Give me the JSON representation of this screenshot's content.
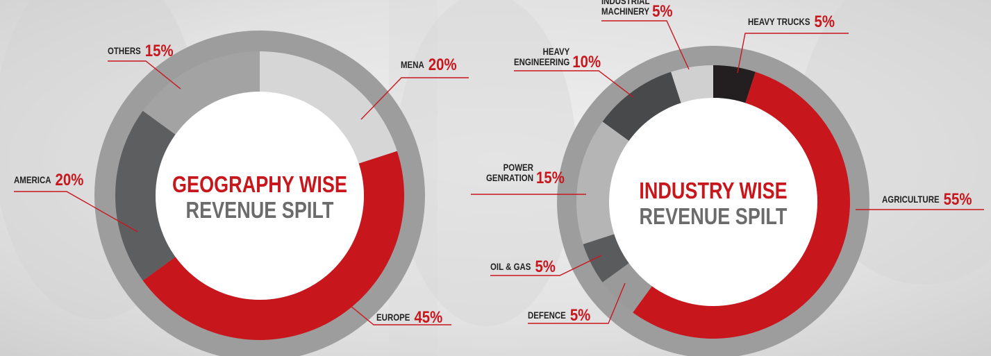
{
  "colors": {
    "accent": "#c8161d",
    "text_dark": "#222222",
    "subtitle": "#6b6b6b",
    "ring_outer": "#9d9d9d",
    "center": "#ffffff"
  },
  "chart_data": [
    {
      "type": "donut",
      "title_line1": "GEOGRAPHY WISE",
      "title_line2": "REVENUE SPILT",
      "segments": [
        {
          "name": "MENA",
          "value": 20,
          "value_label": "20%",
          "color": "#d6d6d6"
        },
        {
          "name": "EUROPE",
          "value": 45,
          "value_label": "45%",
          "color": "#c8161d"
        },
        {
          "name": "AMERICA",
          "value": 20,
          "value_label": "20%",
          "color": "#5d5e60"
        },
        {
          "name": "OTHERS",
          "value": 15,
          "value_label": "15%",
          "color": "#a3a3a3"
        }
      ]
    },
    {
      "type": "donut",
      "title_line1": "INDUSTRY WISE",
      "title_line2": "REVENUE SPILT",
      "segments": [
        {
          "name": "HEAVY TRUCKS",
          "value": 5,
          "value_label": "5%",
          "color": "#231f20"
        },
        {
          "name": "AGRICULTURE",
          "value": 55,
          "value_label": "55%",
          "color": "#c8161d"
        },
        {
          "name": "DEFENCE",
          "value": 5,
          "value_label": "5%",
          "color": "#9a9a9a"
        },
        {
          "name": "OIL & GAS",
          "value": 5,
          "value_label": "5%",
          "color": "#5a5b5d"
        },
        {
          "name": "POWER GENRATION",
          "value": 15,
          "value_label": "15%",
          "color": "#b5b5b5"
        },
        {
          "name": "HEAVY ENGINEERING",
          "value": 10,
          "value_label": "10%",
          "color": "#48494b"
        },
        {
          "name": "INDUSTRIAL MACHINERY",
          "value": 5,
          "value_label": "5%",
          "color": "#d0d0d0"
        }
      ]
    }
  ]
}
